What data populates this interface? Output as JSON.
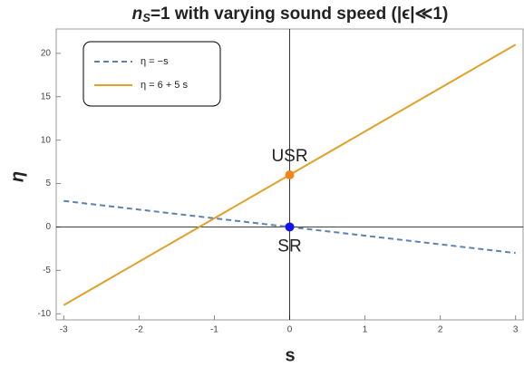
{
  "chart_data": {
    "type": "line",
    "title": {
      "base": "n",
      "subscript": "S",
      "rest": "=1 with varying sound speed (|ϵ|≪1)"
    },
    "x_label": "s",
    "y_label": "η",
    "xlim": [
      -3.1,
      3.1
    ],
    "ylim": [
      -10.7,
      22.8
    ],
    "xticks": [
      -3,
      -2,
      -1,
      0,
      1,
      2,
      3
    ],
    "yticks": [
      -10,
      -5,
      0,
      5,
      10,
      15,
      20
    ],
    "series": [
      {
        "name": "η = −s",
        "color": "#5b82b0",
        "dashed": true,
        "x": [
          -3,
          3
        ],
        "values": [
          3,
          -3
        ]
      },
      {
        "name": "η = 6 + 5 s",
        "color": "#dfa12a",
        "dashed": false,
        "x": [
          -3,
          3
        ],
        "values": [
          -9,
          21
        ]
      }
    ],
    "points": [
      {
        "label": "USR",
        "x": 0,
        "y": 6,
        "color": "#f2861a",
        "label_side": "above"
      },
      {
        "label": "SR",
        "x": 0,
        "y": 0,
        "color": "#1414f0",
        "label_side": "below"
      }
    ],
    "legend": "upper left"
  }
}
